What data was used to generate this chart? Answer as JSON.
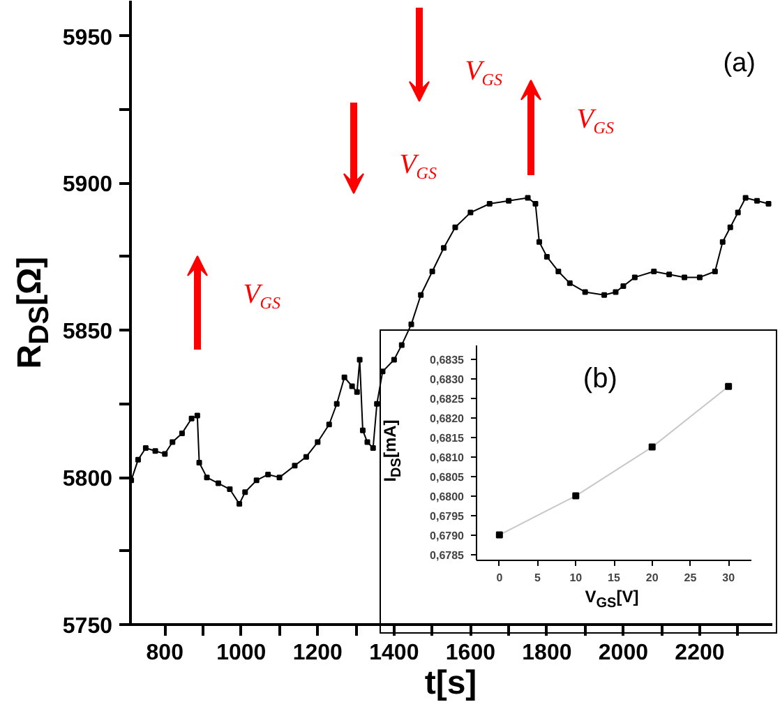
{
  "chart_data": [
    {
      "type": "line",
      "xlabel": "t[s]",
      "ylabel": "R$_{DS}$[Ω]",
      "marker": "square",
      "grid": false,
      "xlim": [
        710,
        2390
      ],
      "ylim": [
        5750,
        5962
      ],
      "xticks": [
        800,
        {
          "value": 900,
          "label": null
        },
        1000,
        {
          "value": 1100,
          "label": null
        },
        1200,
        {
          "value": 1300,
          "label": null
        },
        1400,
        {
          "value": 1500,
          "label": null
        },
        1600,
        {
          "value": 1700,
          "label": null
        },
        1800,
        {
          "value": 1900,
          "label": null
        },
        2000,
        {
          "value": 2100,
          "label": null
        },
        2200,
        {
          "value": 2300,
          "label": null
        }
      ],
      "yticks": [
        5750,
        {
          "value": 5775,
          "label": null
        },
        5800,
        {
          "value": 5825,
          "label": null
        },
        5850,
        {
          "value": 5875,
          "label": null
        },
        5900,
        {
          "value": 5925,
          "label": null
        },
        5950
      ],
      "series": [
        {
          "color": "#000000",
          "x": [
            712,
            730,
            750,
            775,
            800,
            820,
            845,
            870,
            885,
            890,
            910,
            940,
            970,
            995,
            1010,
            1040,
            1070,
            1100,
            1140,
            1170,
            1200,
            1230,
            1250,
            1270,
            1290,
            1303,
            1310,
            1318,
            1330,
            1345,
            1355,
            1370,
            1400,
            1420,
            1445,
            1470,
            1500,
            1530,
            1560,
            1600,
            1650,
            1700,
            1750,
            1770,
            1780,
            1800,
            1830,
            1860,
            1900,
            1950,
            1980,
            2000,
            2030,
            2080,
            2120,
            2160,
            2200,
            2240,
            2260,
            2280,
            2300,
            2320,
            2350,
            2380
          ],
          "values": [
            5799,
            5806,
            5810,
            5809,
            5808,
            5812,
            5815,
            5820,
            5821,
            5805,
            5800,
            5798,
            5796,
            5791,
            5795,
            5799,
            5801,
            5800,
            5804,
            5807,
            5812,
            5818,
            5825,
            5834,
            5831,
            5829,
            5840,
            5816,
            5812,
            5810,
            5825,
            5836,
            5840,
            5845,
            5852,
            5862,
            5870,
            5878,
            5885,
            5890,
            5893,
            5894,
            5895,
            5893,
            5880,
            5875,
            5870,
            5866,
            5863,
            5862,
            5863,
            5865,
            5868,
            5870,
            5869,
            5868,
            5868,
            5870,
            5880,
            5885,
            5890,
            5895,
            5894,
            5893
          ]
        }
      ],
      "annotations": [
        "V$_{GS}$",
        "V$_{GS}$",
        "V$_{GS}$",
        "V$_{GS}$",
        "(a)"
      ]
    },
    {
      "type": "line",
      "xlabel": "V$_{GS}$[V]",
      "ylabel": "I$_{DS}$[mA]",
      "marker": "square",
      "grid": false,
      "xlim": [
        -3,
        33
      ],
      "ylim": [
        0.67835,
        0.68385
      ],
      "xticks": [
        0,
        5,
        10,
        15,
        20,
        25,
        30
      ],
      "yticks": [
        {
          "value": 0.6785,
          "label": "0,6785"
        },
        {
          "value": 0.679,
          "label": "0,6790"
        },
        {
          "value": 0.6795,
          "label": "0,6795"
        },
        {
          "value": 0.68,
          "label": "0,6800"
        },
        {
          "value": 0.6805,
          "label": "0,6805"
        },
        {
          "value": 0.681,
          "label": "0,6810"
        },
        {
          "value": 0.6815,
          "label": "0,6815"
        },
        {
          "value": 0.682,
          "label": "0,6820"
        },
        {
          "value": 0.6825,
          "label": "0,6825"
        },
        {
          "value": 0.683,
          "label": "0,6830"
        },
        {
          "value": 0.6835,
          "label": "0,6835"
        }
      ],
      "series": [
        {
          "color": "#000000",
          "x": [
            0,
            10,
            20,
            30
          ],
          "values": [
            0.679,
            0.68,
            0.68125,
            0.6828
          ]
        }
      ],
      "annotations": [
        "(b)"
      ]
    }
  ]
}
